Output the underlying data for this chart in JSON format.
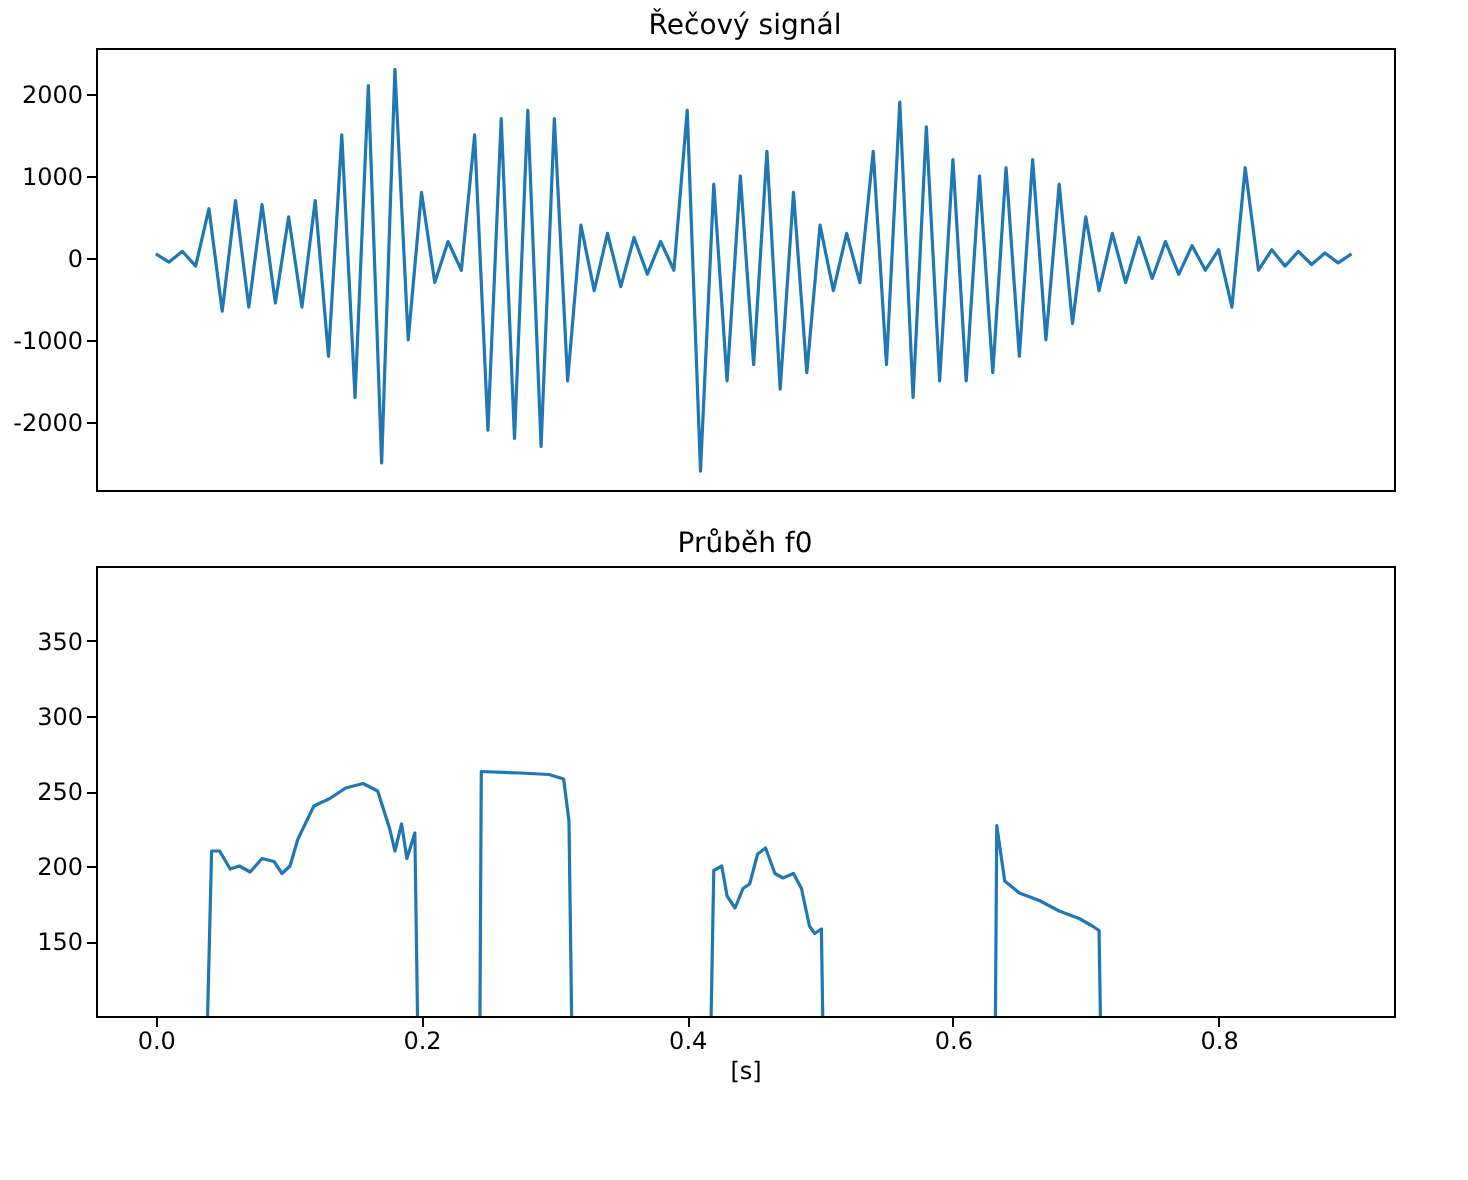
{
  "chart_data": [
    {
      "type": "line",
      "title": "Řečový signál",
      "tick_labels": "y",
      "grid": false,
      "x": [
        0.0,
        0.01,
        0.02,
        0.03,
        0.04,
        0.05,
        0.06,
        0.07,
        0.08,
        0.09,
        0.1,
        0.11,
        0.12,
        0.13,
        0.14,
        0.15,
        0.16,
        0.17,
        0.18,
        0.19,
        0.2,
        0.21,
        0.22,
        0.23,
        0.24,
        0.25,
        0.26,
        0.27,
        0.28,
        0.29,
        0.3,
        0.31,
        0.32,
        0.33,
        0.34,
        0.35,
        0.36,
        0.37,
        0.38,
        0.39,
        0.4,
        0.41,
        0.42,
        0.43,
        0.44,
        0.45,
        0.46,
        0.47,
        0.48,
        0.49,
        0.5,
        0.51,
        0.52,
        0.53,
        0.54,
        0.55,
        0.56,
        0.57,
        0.58,
        0.59,
        0.6,
        0.61,
        0.62,
        0.63,
        0.64,
        0.65,
        0.66,
        0.67,
        0.68,
        0.69,
        0.7,
        0.71,
        0.72,
        0.73,
        0.74,
        0.75,
        0.76,
        0.77,
        0.78,
        0.79,
        0.8,
        0.81,
        0.82,
        0.83,
        0.84,
        0.85,
        0.86,
        0.87,
        0.88,
        0.89,
        0.9
      ],
      "series": [
        {
          "color": "#1f77b4",
          "values": [
            50,
            -50,
            80,
            -100,
            600,
            -650,
            700,
            -600,
            650,
            -550,
            500,
            -600,
            700,
            -1200,
            1500,
            -1700,
            2100,
            -2500,
            2300,
            -1000,
            800,
            -300,
            200,
            -150,
            1500,
            -2100,
            1700,
            -2200,
            1800,
            -2300,
            1700,
            -1500,
            400,
            -400,
            300,
            -350,
            250,
            -200,
            200,
            -150,
            1800,
            -2600,
            900,
            -1500,
            1000,
            -1300,
            1300,
            -1600,
            800,
            -1400,
            400,
            -400,
            300,
            -300,
            1300,
            -1300,
            1900,
            -1700,
            1600,
            -1500,
            1200,
            -1500,
            1000,
            -1400,
            1100,
            -1200,
            1200,
            -1000,
            900,
            -800,
            500,
            -400,
            300,
            -300,
            250,
            -250,
            200,
            -200,
            150,
            -150,
            100,
            -600,
            1100,
            -150,
            100,
            -100,
            80,
            -80,
            60,
            -60,
            50
          ]
        }
      ],
      "xlim": [
        -0.045,
        0.932
      ],
      "ylim": [
        -2830,
        2560
      ],
      "yticks": [
        -2000,
        -1000,
        0,
        1000,
        2000
      ]
    },
    {
      "type": "line",
      "title": "Průběh f0",
      "xlabel": "[s]",
      "grid": false,
      "x": [
        0.039,
        0.042,
        0.048,
        0.056,
        0.063,
        0.071,
        0.08,
        0.089,
        0.095,
        0.101,
        0.107,
        0.119,
        0.131,
        0.143,
        0.156,
        0.167,
        0.176,
        0.18,
        0.185,
        0.189,
        0.195,
        0.197,
        0.22,
        0.244,
        0.245,
        0.274,
        0.296,
        0.307,
        0.311,
        0.313,
        0.36,
        0.418,
        0.42,
        0.426,
        0.43,
        0.436,
        0.442,
        0.447,
        0.453,
        0.459,
        0.466,
        0.472,
        0.48,
        0.486,
        0.492,
        0.496,
        0.501,
        0.502,
        0.57,
        0.632,
        0.633,
        0.639,
        0.65,
        0.665,
        0.68,
        0.695,
        0.705,
        0.71,
        0.711
      ],
      "series": [
        {
          "color": "#1f77b4",
          "values": [
            100,
            210,
            210,
            198,
            200,
            196,
            205,
            203,
            195,
            200,
            218,
            240,
            245,
            252,
            255,
            250,
            225,
            210,
            228,
            205,
            222,
            100,
            null,
            100,
            263,
            262,
            261,
            258,
            230,
            100,
            null,
            100,
            197,
            200,
            180,
            172,
            185,
            188,
            208,
            212,
            195,
            192,
            195,
            185,
            160,
            155,
            158,
            100,
            null,
            100,
            227,
            190,
            182,
            177,
            170,
            165,
            160,
            157,
            100
          ]
        }
      ],
      "xlim": [
        -0.045,
        0.932
      ],
      "ylim": [
        100,
        400
      ],
      "xticks": [
        {
          "value": 0,
          "label": "0.0"
        },
        0.2,
        0.4,
        0.6,
        0.8
      ],
      "yticks": [
        150,
        200,
        250,
        300,
        350
      ]
    }
  ]
}
